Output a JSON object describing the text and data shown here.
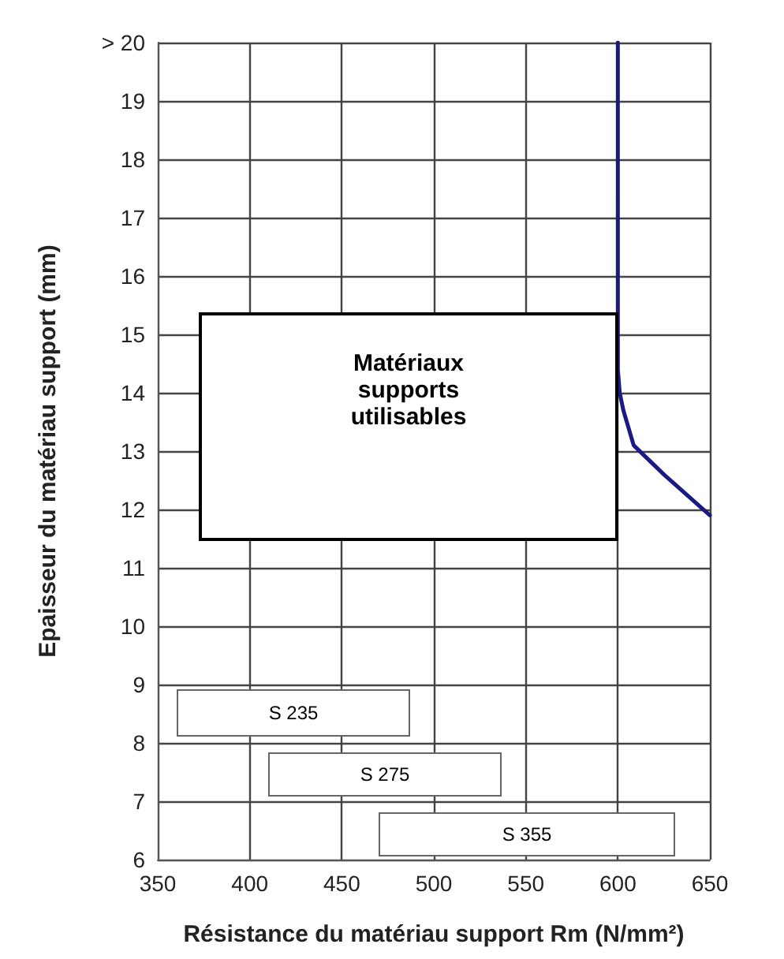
{
  "chart_data": {
    "type": "line",
    "xlabel": "Résistance du matériau support Rm (N/mm²)",
    "ylabel": "Epaisseur du matériau support (mm)",
    "x": [
      600,
      600,
      600,
      601,
      603,
      608.6,
      625,
      650
    ],
    "series": [
      {
        "color": "#1a1a80",
        "values": [
          20,
          16,
          14.4,
          14.0,
          13.7,
          13.1,
          12.6,
          11.9
        ]
      }
    ],
    "xlim": [
      350,
      650
    ],
    "xticks": [
      350,
      400,
      450,
      500,
      550,
      600,
      650
    ],
    "ylim": [
      6,
      20
    ],
    "yticks": [
      6,
      7,
      8,
      9,
      10,
      11,
      12,
      13,
      14,
      15,
      16,
      17,
      18,
      19,
      {
        "value": 20,
        "label": "> 20"
      }
    ],
    "grid": true,
    "marker": "none",
    "line_style": "solid",
    "annotations": [
      "Matériaux\nsupports\nutilisables",
      "S 235",
      "S 275",
      "S 355"
    ]
  }
}
